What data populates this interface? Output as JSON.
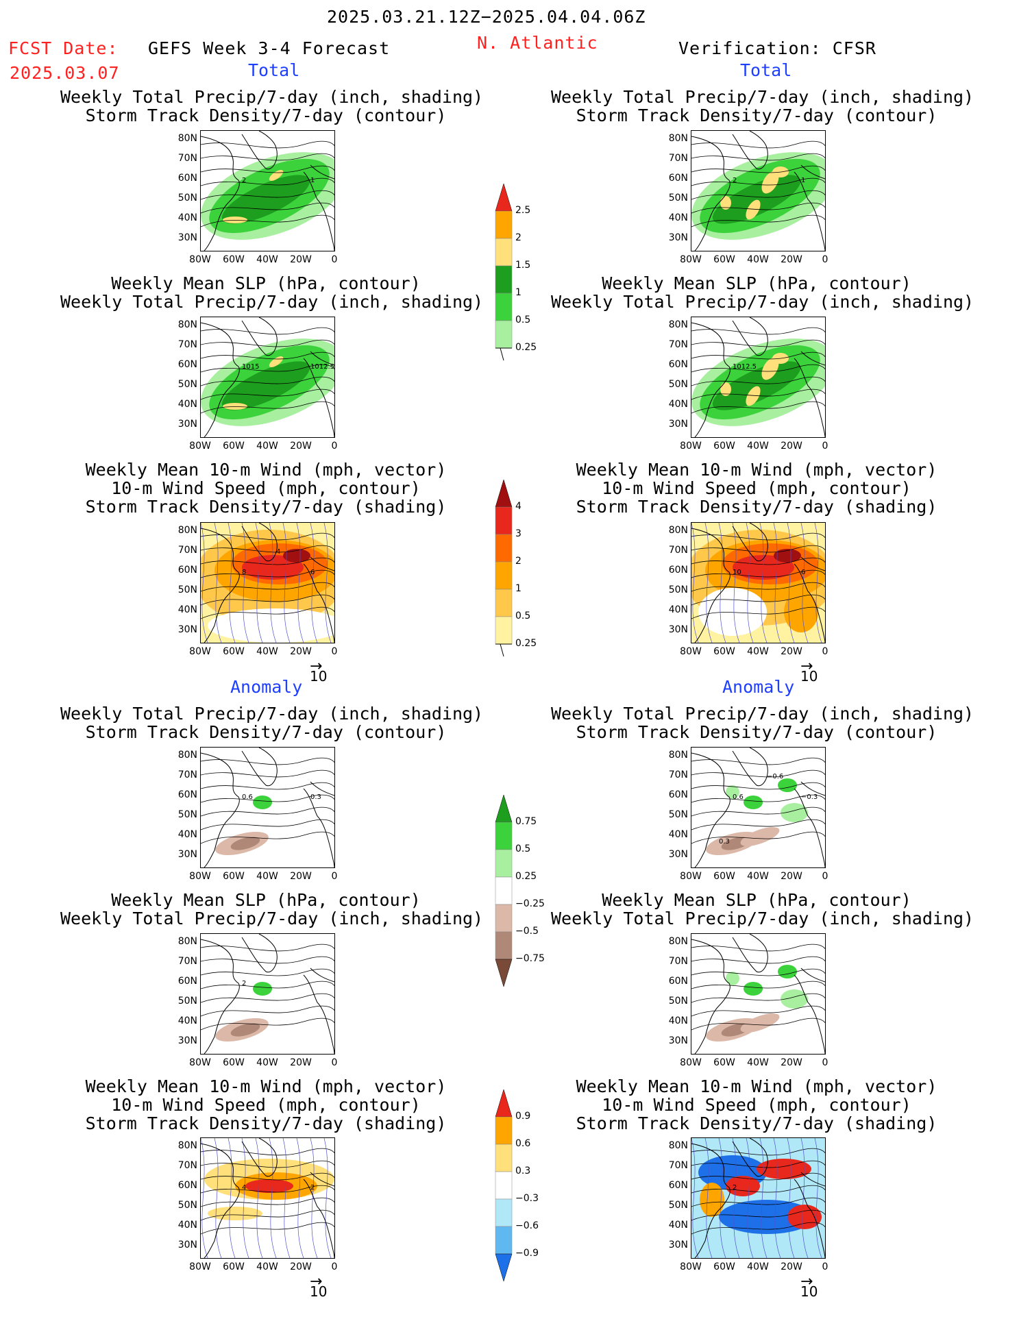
{
  "header": {
    "date_range": "2025.03.21.12Z−2025.04.04.06Z",
    "fcst_label": "FCST Date:",
    "fcst_date": "2025.03.07",
    "left_title": "GEFS Week 3-4 Forecast",
    "region": "N. Atlantic",
    "right_title": "Verification: CFSR"
  },
  "sections": {
    "total": "Total",
    "anomaly": "Anomaly"
  },
  "panel_titles": {
    "precip_track": [
      "Weekly Total Precip/7-day (inch, shading)",
      "Storm Track Density/7-day (contour)"
    ],
    "slp_precip": [
      "Weekly Mean SLP (hPa, contour)",
      "Weekly Total Precip/7-day (inch, shading)"
    ],
    "wind_track": [
      "Weekly Mean 10-m Wind (mph, vector)",
      "10-m Wind Speed (mph, contour)",
      "Storm Track Density/7-day (shading)"
    ]
  },
  "axes": {
    "lat_ticks": [
      "80N",
      "70N",
      "60N",
      "50N",
      "40N",
      "30N"
    ],
    "lon_ticks": [
      "80W",
      "60W",
      "40W",
      "20W",
      "0"
    ]
  },
  "vector_reference": "10",
  "colorbars": {
    "total_precip": {
      "labels": [
        "2.5",
        "2",
        "1.5",
        "1",
        "0.5",
        "0.25"
      ],
      "colors": [
        "#e8281c",
        "#ffa500",
        "#ffe07a",
        "#1e9e1e",
        "#3cd23c",
        "#a8f0a0"
      ]
    },
    "total_track": {
      "labels": [
        "4",
        "3",
        "2",
        "1",
        "0.5",
        "0.25"
      ],
      "colors": [
        "#a01010",
        "#e8281c",
        "#ff6a00",
        "#ffa500",
        "#ffc84a",
        "#fff2a0"
      ]
    },
    "anom_precip": {
      "labels": [
        "0.75",
        "0.5",
        "0.25",
        "−0.25",
        "−0.5",
        "−0.75"
      ],
      "colors": [
        "#1e9e1e",
        "#3cd23c",
        "#a8f0a0",
        "#ffffff",
        "#dcb8a8",
        "#b08878",
        "#7a4a38"
      ]
    },
    "anom_track": {
      "labels": [
        "0.9",
        "0.6",
        "0.3",
        "−0.3",
        "−0.6",
        "−0.9"
      ],
      "colors": [
        "#e8281c",
        "#ffa500",
        "#ffe07a",
        "#ffffff",
        "#b0e8f8",
        "#60b8f0",
        "#1e70e8"
      ]
    }
  },
  "contour_labels": {
    "p1L": [
      "2",
      "1"
    ],
    "p1R": [
      "2",
      "1"
    ],
    "p2L": [
      "1015",
      "1012.5"
    ],
    "p2R": [
      "1012.5"
    ],
    "p3L": [
      "8",
      "6",
      "4"
    ],
    "p3R": [
      "10",
      "6"
    ],
    "p4L": [
      "0.6",
      "0.3"
    ],
    "p4R": [
      "0.6",
      "−0.3",
      "−0.6",
      "0.3"
    ],
    "p5L": [
      "2"
    ],
    "p5R": [],
    "p6L": [
      "4",
      "2"
    ],
    "p6R": [
      "2"
    ]
  }
}
